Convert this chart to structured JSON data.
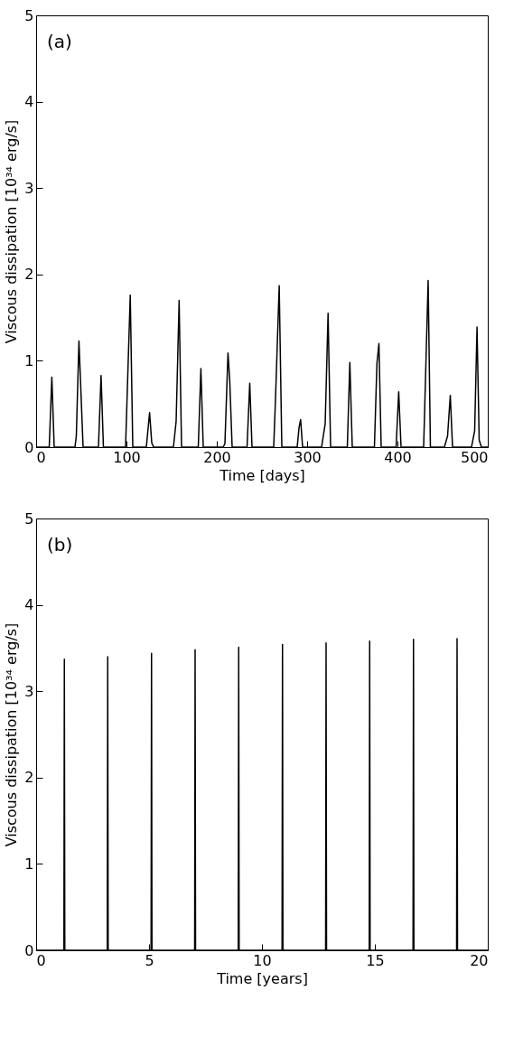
{
  "chart_data": [
    {
      "type": "line",
      "xlabel": "Time [days]",
      "ylabel": "Viscous dissipation [10³⁴ erg/s]",
      "annotations": [
        "(a)"
      ],
      "x": [
        0,
        14.5,
        17.4,
        20,
        43,
        44.5,
        47.4,
        52,
        69,
        71.9,
        74.5,
        99,
        104.2,
        107,
        122,
        125.6,
        128,
        130,
        152,
        155,
        158.3,
        161,
        179.5,
        182.4,
        185,
        207,
        209,
        212.4,
        214.3,
        217,
        233.5,
        236.5,
        239,
        263,
        265,
        269.1,
        272,
        289,
        291,
        292.8,
        295,
        316,
        320,
        323.2,
        326,
        344.5,
        347.3,
        350,
        374.5,
        377.3,
        379.5,
        382,
        398.5,
        401.4,
        404,
        429,
        434,
        436.5,
        452,
        455.5,
        458.5,
        461,
        482,
        485.5,
        488.1,
        490.5,
        493,
        500
      ],
      "series": [
        {
          "color": "#000000",
          "values": [
            0,
            0,
            0.81,
            0,
            0,
            0.13,
            1.23,
            0,
            0,
            0.83,
            0,
            0,
            1.76,
            0,
            0,
            0.4,
            0.05,
            0,
            0,
            0.3,
            1.7,
            0,
            0,
            0.91,
            0,
            0,
            0.04,
            1.09,
            0.78,
            0,
            0,
            0.74,
            0,
            0,
            0.56,
            1.87,
            0,
            0,
            0.22,
            0.32,
            0,
            0,
            0.27,
            1.55,
            0,
            0,
            0.98,
            0,
            0,
            0.97,
            1.2,
            0,
            0,
            0.64,
            0,
            0,
            1.93,
            0,
            0,
            0.13,
            0.6,
            0,
            0,
            0.19,
            1.39,
            0.08,
            0,
            0
          ]
        }
      ],
      "xlim": [
        0,
        500
      ],
      "xticks": [
        0,
        100,
        200,
        300,
        400,
        500
      ],
      "ylim": [
        0,
        5
      ],
      "yticks": [
        0,
        1,
        2,
        3,
        4,
        5
      ],
      "grid": false
    },
    {
      "type": "line",
      "xlabel": "Time [years]",
      "ylabel": "Viscous dissipation [10³⁴ erg/s]",
      "annotations": [
        "(b)"
      ],
      "x": [
        0,
        1.23,
        1.25,
        1.27,
        3.15,
        3.17,
        3.19,
        5.09,
        5.11,
        5.13,
        7.02,
        7.04,
        7.06,
        8.95,
        8.97,
        8.99,
        10.89,
        10.91,
        10.93,
        12.82,
        12.84,
        12.86,
        14.75,
        14.77,
        14.79,
        16.69,
        16.71,
        16.73,
        18.62,
        18.64,
        18.66,
        20
      ],
      "series": [
        {
          "color": "#000000",
          "values": [
            0,
            0,
            3.37,
            0,
            0,
            3.4,
            0,
            0,
            3.44,
            0,
            0,
            3.48,
            0,
            0,
            3.51,
            0,
            0,
            3.54,
            0,
            0,
            3.56,
            0,
            0,
            3.58,
            0,
            0,
            3.6,
            0,
            0,
            3.61,
            0,
            0
          ]
        }
      ],
      "xlim": [
        0,
        20
      ],
      "xticks": [
        0,
        5,
        10,
        15,
        20
      ],
      "ylim": [
        0,
        5
      ],
      "yticks": [
        0,
        1,
        2,
        3,
        4,
        5
      ],
      "grid": false
    }
  ]
}
